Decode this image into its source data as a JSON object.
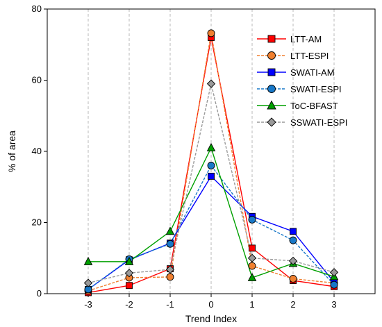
{
  "chart_data": {
    "type": "line",
    "title": "",
    "xlabel": "Trend Index",
    "ylabel": "% of area",
    "xlim": [
      -4,
      4
    ],
    "ylim": [
      0,
      80
    ],
    "x": [
      -3,
      -2,
      -1,
      0,
      1,
      2,
      3
    ],
    "x_ticks": [
      -3,
      -2,
      -1,
      0,
      1,
      2,
      3
    ],
    "y_ticks": [
      0,
      20,
      40,
      60,
      80
    ],
    "grid": "vertical dashed",
    "legend": "top-right",
    "series": [
      {
        "name": "LTT-AM",
        "values": [
          0.3,
          2.3,
          7.0,
          72.0,
          12.8,
          3.7,
          2.0
        ],
        "color": "#ff0000",
        "dash": "solid",
        "marker": "square"
      },
      {
        "name": "LTT-ESPI",
        "values": [
          0.8,
          4.5,
          4.7,
          73.2,
          7.8,
          4.2,
          3.0
        ],
        "color": "#f08030",
        "dash": "dashed",
        "marker": "circle"
      },
      {
        "name": "SWATI-AM",
        "values": [
          1.2,
          9.5,
          14.2,
          33.0,
          21.7,
          17.5,
          3.2
        ],
        "color": "#0000ff",
        "dash": "solid",
        "marker": "square"
      },
      {
        "name": "SWATI-ESPI",
        "values": [
          1.2,
          9.7,
          14.0,
          36.0,
          20.8,
          15.0,
          2.5
        ],
        "color": "#1878c8",
        "dash": "dashed",
        "marker": "circle"
      },
      {
        "name": "ToC-BFAST",
        "values": [
          9.0,
          9.0,
          17.5,
          41.0,
          4.5,
          8.5,
          4.8
        ],
        "color": "#00a000",
        "dash": "solid",
        "marker": "triangle"
      },
      {
        "name": "SSWATI-ESPI",
        "values": [
          3.0,
          5.8,
          6.8,
          59.0,
          10.0,
          9.2,
          6.0
        ],
        "color": "#9a9a9a",
        "dash": "dashed",
        "marker": "diamond"
      }
    ]
  }
}
